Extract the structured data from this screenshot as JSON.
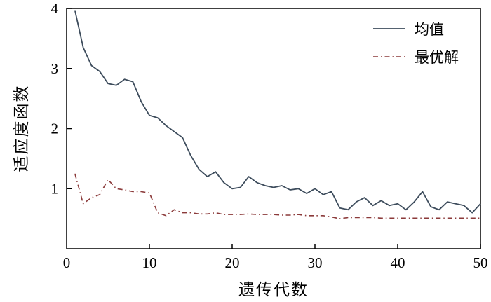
{
  "figure": {
    "background": "#ffffff"
  },
  "chart_data": {
    "type": "line",
    "title": "",
    "xlabel": "遗传代数",
    "ylabel": "适应度函数",
    "xlim": [
      0,
      50
    ],
    "ylim": [
      0,
      4
    ],
    "xticks": [
      0,
      10,
      20,
      30,
      40,
      50
    ],
    "yticks": [
      1,
      2,
      3,
      4
    ],
    "grid": false,
    "legend_position": "top-right",
    "x": [
      1,
      2,
      3,
      4,
      5,
      6,
      7,
      8,
      9,
      10,
      11,
      12,
      13,
      14,
      15,
      16,
      17,
      18,
      19,
      20,
      21,
      22,
      23,
      24,
      25,
      26,
      27,
      28,
      29,
      30,
      31,
      32,
      33,
      34,
      35,
      36,
      37,
      38,
      39,
      40,
      41,
      42,
      43,
      44,
      45,
      46,
      47,
      48,
      49,
      50
    ],
    "series": [
      {
        "name": "均值",
        "color": "#3d4c5c",
        "style": "solid",
        "values": [
          3.97,
          3.35,
          3.05,
          2.95,
          2.75,
          2.72,
          2.82,
          2.78,
          2.45,
          2.22,
          2.18,
          2.05,
          1.95,
          1.85,
          1.55,
          1.32,
          1.2,
          1.28,
          1.1,
          1.0,
          1.02,
          1.2,
          1.1,
          1.05,
          1.02,
          1.05,
          0.98,
          1.0,
          0.92,
          1.0,
          0.9,
          0.95,
          0.68,
          0.65,
          0.78,
          0.85,
          0.72,
          0.8,
          0.72,
          0.75,
          0.65,
          0.78,
          0.95,
          0.7,
          0.65,
          0.78,
          0.75,
          0.72,
          0.6,
          0.75
        ]
      },
      {
        "name": "最优解",
        "color": "#8b3a3a",
        "style": "dash-dot",
        "values": [
          1.25,
          0.75,
          0.85,
          0.9,
          1.15,
          1.0,
          0.98,
          0.95,
          0.95,
          0.93,
          0.6,
          0.55,
          0.65,
          0.6,
          0.6,
          0.58,
          0.58,
          0.6,
          0.57,
          0.57,
          0.57,
          0.58,
          0.57,
          0.57,
          0.57,
          0.56,
          0.56,
          0.57,
          0.55,
          0.55,
          0.55,
          0.53,
          0.5,
          0.52,
          0.52,
          0.52,
          0.52,
          0.51,
          0.51,
          0.51,
          0.51,
          0.51,
          0.51,
          0.51,
          0.51,
          0.51,
          0.51,
          0.51,
          0.51,
          0.51
        ]
      }
    ]
  }
}
